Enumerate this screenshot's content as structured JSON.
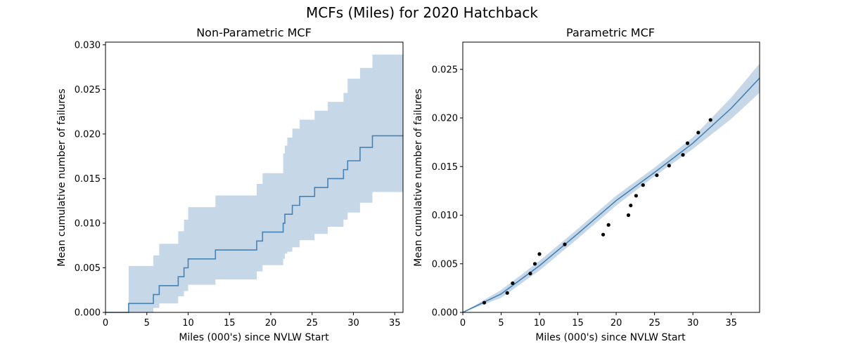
{
  "figure": {
    "title": "MCFs (Miles) for 2020 Hatchback"
  },
  "colors": {
    "line": "#4682b4",
    "band": "#c6d7e8",
    "points": "#000000",
    "axes": "#000000"
  },
  "chart_data": [
    {
      "type": "line",
      "subtype": "step",
      "title": "Non-Parametric MCF",
      "xlabel": "Miles (000's) since NVLW Start",
      "ylabel": "Mean cumulative number of failures",
      "xlim": [
        0,
        36
      ],
      "ylim": [
        0,
        0.0303
      ],
      "xticks": [
        0,
        5,
        10,
        15,
        20,
        25,
        30,
        35
      ],
      "xtick_labels": [
        "0",
        "5",
        "10",
        "15",
        "20",
        "25",
        "30",
        "35"
      ],
      "yticks": [
        0,
        0.005,
        0.01,
        0.015,
        0.02,
        0.025,
        0.03
      ],
      "ytick_labels": [
        "0.000",
        "0.005",
        "0.010",
        "0.015",
        "0.020",
        "0.025",
        "0.030"
      ],
      "grid": false,
      "series": [
        {
          "x": [
            0,
            2.8,
            5.8,
            6.5,
            8.8,
            9.5,
            10.0,
            13.3,
            18.3,
            19.0,
            21.5,
            21.7,
            22.0,
            22.6,
            23.5,
            25.3,
            26.9,
            28.8,
            29.3,
            30.8,
            32.3,
            36
          ],
          "y": [
            0,
            0.001,
            0.002,
            0.003,
            0.004,
            0.005,
            0.006,
            0.007,
            0.008,
            0.009,
            0.01,
            0.011,
            0.011,
            0.012,
            0.013,
            0.014,
            0.015,
            0.016,
            0.017,
            0.0185,
            0.0198,
            0.0198
          ],
          "lower": [
            0,
            0,
            0.0005,
            0.001,
            0.0018,
            0.0024,
            0.0031,
            0.0037,
            0.0046,
            0.0053,
            0.006,
            0.0066,
            0.0068,
            0.0073,
            0.0081,
            0.0088,
            0.0096,
            0.0104,
            0.0112,
            0.0123,
            0.0135,
            0.0135
          ],
          "upper": [
            0,
            0.0052,
            0.0064,
            0.0077,
            0.0091,
            0.0104,
            0.0118,
            0.0131,
            0.0144,
            0.0156,
            0.0178,
            0.0187,
            0.0196,
            0.0206,
            0.0216,
            0.0226,
            0.0236,
            0.0246,
            0.0262,
            0.0274,
            0.0289,
            0.0289
          ]
        }
      ]
    },
    {
      "type": "line",
      "title": "Parametric MCF",
      "xlabel": "Miles (000's) since NVLW Start",
      "ylabel": "Mean cumulative number of failures",
      "xlim": [
        0,
        38.7
      ],
      "ylim": [
        0,
        0.0278
      ],
      "xticks": [
        0,
        5,
        10,
        15,
        20,
        25,
        30,
        35
      ],
      "xtick_labels": [
        "0",
        "5",
        "10",
        "15",
        "20",
        "25",
        "30",
        "35"
      ],
      "yticks": [
        0,
        0.005,
        0.01,
        0.015,
        0.02,
        0.025
      ],
      "ytick_labels": [
        "0.000",
        "0.005",
        "0.010",
        "0.015",
        "0.020",
        "0.025"
      ],
      "grid": false,
      "curve": {
        "x": [
          0,
          5,
          10,
          15,
          20,
          25,
          30,
          35,
          38.7
        ],
        "y": [
          0,
          0.0019,
          0.0048,
          0.0081,
          0.0115,
          0.0144,
          0.0174,
          0.021,
          0.0241
        ],
        "lower": [
          0,
          0.0015,
          0.0043,
          0.0076,
          0.011,
          0.014,
          0.0168,
          0.0199,
          0.0226
        ],
        "upper": [
          0,
          0.0023,
          0.0053,
          0.0086,
          0.012,
          0.0149,
          0.018,
          0.0221,
          0.0256
        ]
      },
      "points": {
        "x": [
          2.8,
          5.8,
          6.5,
          8.8,
          9.4,
          10.0,
          13.3,
          18.3,
          19.0,
          21.6,
          21.9,
          22.6,
          23.5,
          25.3,
          26.9,
          28.7,
          29.3,
          30.7,
          32.3
        ],
        "y": [
          0.001,
          0.002,
          0.003,
          0.004,
          0.005,
          0.006,
          0.007,
          0.008,
          0.009,
          0.01,
          0.011,
          0.012,
          0.0131,
          0.0141,
          0.0151,
          0.0162,
          0.0174,
          0.0185,
          0.0198
        ]
      }
    }
  ]
}
